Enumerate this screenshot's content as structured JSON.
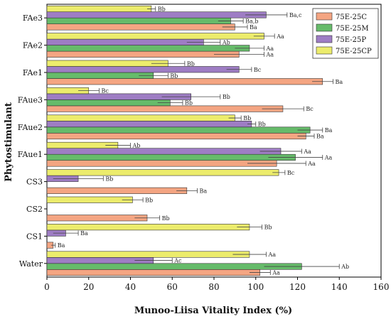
{
  "chart_data": {
    "type": "bar",
    "orientation": "horizontal",
    "title": "",
    "xlabel": "Munoo-Liisa Vitality Index (%)",
    "ylabel": "Phytostimulant",
    "xlim": [
      0,
      160
    ],
    "xticks": [
      0,
      20,
      40,
      60,
      80,
      100,
      120,
      140,
      160
    ],
    "grid": false,
    "legend_position": "top-right",
    "categories": [
      "Water",
      "CS1",
      "CS2",
      "CS3",
      "FAue1",
      "FAue2",
      "FAue3",
      "FAe1",
      "FAe2",
      "FAe3"
    ],
    "series": [
      {
        "name": "75E-25C",
        "color": "#f4a582",
        "values": [
          102,
          3,
          48,
          67,
          110,
          124,
          113,
          132,
          92,
          90
        ],
        "errors": [
          5,
          1,
          6,
          5,
          14,
          4,
          10,
          5,
          12,
          6
        ],
        "labels": [
          "Aa",
          "Ba",
          "Bb",
          "Ba",
          "Aa",
          "Ba",
          "Bc",
          "Ba",
          "Aa",
          "Ba"
        ]
      },
      {
        "name": "75E-25M",
        "color": "#66bb6a",
        "values": [
          122,
          null,
          null,
          null,
          119,
          126,
          59,
          51,
          97,
          88
        ],
        "errors": [
          18,
          0,
          0,
          0,
          13,
          6,
          6,
          7,
          7,
          6
        ],
        "labels": [
          "Ab",
          "",
          "",
          "",
          "Aa",
          "Ba",
          "Bb",
          "Bb",
          "Aa",
          "Ba,b"
        ]
      },
      {
        "name": "75E-25P",
        "color": "#9e7dc4",
        "values": [
          51,
          9,
          null,
          15,
          112,
          98,
          69,
          92,
          75,
          105
        ],
        "errors": [
          9,
          6,
          0,
          12,
          10,
          2,
          14,
          6,
          8,
          10
        ],
        "labels": [
          "Ac",
          "Ba",
          "",
          "Bb",
          "Aa",
          "Bb",
          "Bb",
          "Bc",
          "Ab",
          "Ba,c"
        ]
      },
      {
        "name": "75E-25CP",
        "color": "#ecec6c",
        "values": [
          97,
          97,
          41,
          111,
          34,
          90,
          20,
          58,
          104,
          50
        ],
        "errors": [
          8,
          6,
          5,
          3,
          6,
          3,
          5,
          8,
          5,
          2
        ],
        "labels": [
          "Aa",
          "Bb",
          "Bb",
          "Bc",
          "Ab",
          "Bb",
          "Bc",
          "Bb",
          "Aa",
          "Bb"
        ]
      }
    ]
  }
}
